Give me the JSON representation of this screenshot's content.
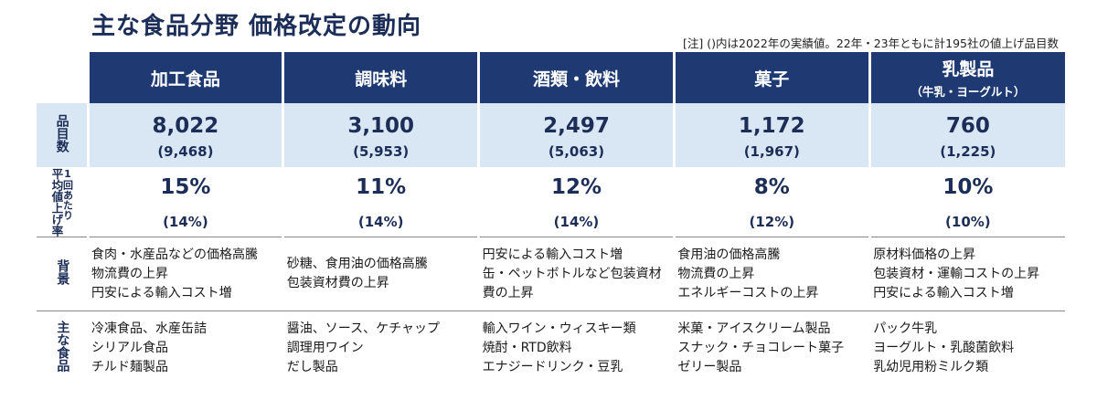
{
  "title": "主な食品分野  価格改定の動向",
  "note": "[注] ()内は2022年の実績値。22年・23年ともに計195社の値上げ品目数",
  "row_labels": {
    "count": "品目数",
    "rate_main": "平均値上げ率",
    "rate_sub": "1回あたり",
    "background": "背景",
    "foods": "主な食品"
  },
  "categories": [
    {
      "name": "加工食品",
      "sub": "",
      "count": "8,022",
      "count_prev": "(9,468)",
      "rate": "15%",
      "rate_prev": "(14%)",
      "background": [
        "食肉・水産品などの価格高騰",
        "物流費の上昇",
        "円安による輸入コスト増"
      ],
      "foods": [
        "冷凍食品、水産缶詰",
        "シリアル食品",
        "チルド麺製品"
      ]
    },
    {
      "name": "調味料",
      "sub": "",
      "count": "3,100",
      "count_prev": "(5,953)",
      "rate": "11%",
      "rate_prev": "(14%)",
      "background": [
        "砂糖、食用油の価格高騰",
        "包装資材費の上昇"
      ],
      "foods": [
        "醤油、ソース、ケチャップ",
        "調理用ワイン",
        "だし製品"
      ]
    },
    {
      "name": "酒類・飲料",
      "sub": "",
      "count": "2,497",
      "count_prev": "(5,063)",
      "rate": "12%",
      "rate_prev": "(14%)",
      "background": [
        "円安による輸入コスト増",
        "缶・ペットボトルなど包装資材",
        "費の上昇"
      ],
      "foods": [
        "輸入ワイン・ウィスキー類",
        "焼酎・RTD飲料",
        "エナジードリンク・豆乳"
      ]
    },
    {
      "name": "菓子",
      "sub": "",
      "count": "1,172",
      "count_prev": "(1,967)",
      "rate": "8%",
      "rate_prev": "(12%)",
      "background": [
        "食用油の価格高騰",
        "物流費の上昇",
        "エネルギーコストの上昇"
      ],
      "foods": [
        "米菓・アイスクリーム製品",
        "スナック・チョコレート菓子",
        "ゼリー製品"
      ]
    },
    {
      "name": "乳製品",
      "sub": "（牛乳・ヨーグルト）",
      "count": "760",
      "count_prev": "(1,225)",
      "rate": "10%",
      "rate_prev": "(10%)",
      "background": [
        "原材料価格の上昇",
        "包装資材・運輸コストの上昇",
        "円安による輸入コスト増"
      ],
      "foods": [
        "パック牛乳",
        "ヨーグルト・乳酸菌飲料",
        "乳幼児用粉ミルク類"
      ]
    }
  ]
}
